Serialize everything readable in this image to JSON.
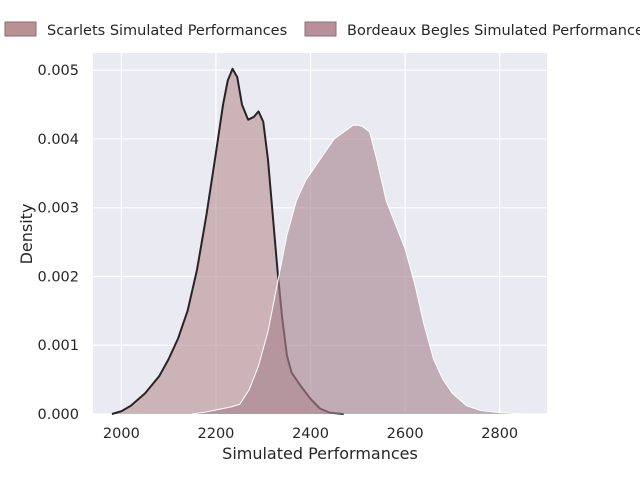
{
  "chart_data": {
    "type": "area",
    "subtype": "kde",
    "xlabel": "Simulated Performances",
    "ylabel": "Density",
    "xlim": [
      1940,
      2900
    ],
    "ylim": [
      0,
      0.00525
    ],
    "x_ticks": [
      2000,
      2200,
      2400,
      2600,
      2800
    ],
    "y_ticks": [
      0.0,
      0.001,
      0.002,
      0.003,
      0.004,
      0.005
    ],
    "y_tick_labels": [
      "0.000",
      "0.001",
      "0.002",
      "0.003",
      "0.004",
      "0.005"
    ],
    "grid": true,
    "legend_placement": "top",
    "series": [
      {
        "name": "Scarlets Simulated Performances",
        "fill_color": "#b89294",
        "legend_color": "#b99194",
        "line_color": "#2a2326",
        "points": [
          [
            1980,
            0.0
          ],
          [
            2000,
            4e-05
          ],
          [
            2020,
            0.00012
          ],
          [
            2050,
            0.0003
          ],
          [
            2080,
            0.00055
          ],
          [
            2100,
            0.0008
          ],
          [
            2120,
            0.0011
          ],
          [
            2140,
            0.0015
          ],
          [
            2160,
            0.0021
          ],
          [
            2180,
            0.0029
          ],
          [
            2200,
            0.0038
          ],
          [
            2215,
            0.0045
          ],
          [
            2225,
            0.00485
          ],
          [
            2235,
            0.00502
          ],
          [
            2245,
            0.0049
          ],
          [
            2255,
            0.0045
          ],
          [
            2268,
            0.00428
          ],
          [
            2280,
            0.00432
          ],
          [
            2290,
            0.0044
          ],
          [
            2300,
            0.00425
          ],
          [
            2310,
            0.0037
          ],
          [
            2320,
            0.0029
          ],
          [
            2330,
            0.0021
          ],
          [
            2340,
            0.0014
          ],
          [
            2350,
            0.00085
          ],
          [
            2360,
            0.0006
          ],
          [
            2380,
            0.0004
          ],
          [
            2400,
            0.00022
          ],
          [
            2420,
            8e-05
          ],
          [
            2440,
            2e-05
          ],
          [
            2470,
            0.0
          ]
        ]
      },
      {
        "name": "Bordeaux Begles Simulated Performances",
        "fill_color": "#a8848f",
        "legend_color": "#b7909b",
        "line_color": "#ffffff",
        "points": [
          [
            2150,
            0.0
          ],
          [
            2180,
            3e-05
          ],
          [
            2200,
            6e-05
          ],
          [
            2230,
            0.0001
          ],
          [
            2250,
            0.00014
          ],
          [
            2270,
            0.00035
          ],
          [
            2290,
            0.0007
          ],
          [
            2310,
            0.0012
          ],
          [
            2330,
            0.0019
          ],
          [
            2350,
            0.0026
          ],
          [
            2370,
            0.0031
          ],
          [
            2390,
            0.0034
          ],
          [
            2410,
            0.0036
          ],
          [
            2430,
            0.0038
          ],
          [
            2450,
            0.004
          ],
          [
            2470,
            0.0041
          ],
          [
            2490,
            0.0042
          ],
          [
            2500,
            0.0042
          ],
          [
            2510,
            0.00418
          ],
          [
            2525,
            0.0041
          ],
          [
            2540,
            0.0037
          ],
          [
            2560,
            0.0031
          ],
          [
            2580,
            0.00275
          ],
          [
            2600,
            0.0024
          ],
          [
            2620,
            0.0019
          ],
          [
            2640,
            0.0013
          ],
          [
            2660,
            0.0008
          ],
          [
            2680,
            0.0005
          ],
          [
            2700,
            0.0003
          ],
          [
            2730,
            0.00012
          ],
          [
            2760,
            5e-05
          ],
          [
            2800,
            2e-05
          ],
          [
            2850,
            0.0
          ]
        ]
      }
    ]
  }
}
